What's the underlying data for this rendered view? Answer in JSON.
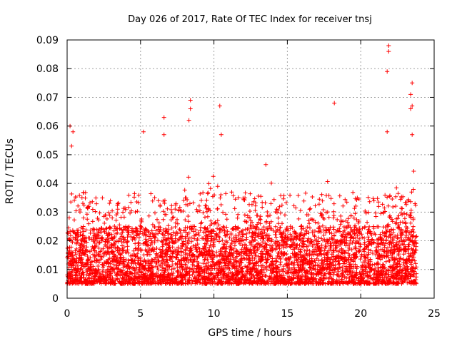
{
  "chart_data": {
    "type": "scatter",
    "title": "Day 026 of 2017, Rate Of TEC Index for receiver tnsj",
    "xlabel": "GPS time / hours",
    "ylabel": "ROTI / TECUs",
    "xlim": [
      0,
      25
    ],
    "ylim": [
      0,
      0.09
    ],
    "xticks": [
      0,
      5,
      10,
      15,
      20,
      25
    ],
    "xtick_labels": [
      "0",
      "5",
      "10",
      "15",
      "20",
      "25"
    ],
    "yticks": [
      0,
      0.01,
      0.02,
      0.03,
      0.04,
      0.05,
      0.06,
      0.07,
      0.08,
      0.09
    ],
    "ytick_labels": [
      "0",
      "0.01",
      "0.02",
      "0.03",
      "0.04",
      "0.05",
      "0.06",
      "0.07",
      "0.08",
      "0.09"
    ],
    "grid": true,
    "marker": "+",
    "series": [
      {
        "name": "ROTI",
        "color": "#ff0000",
        "x_range": [
          0,
          23.8
        ],
        "typical_band": [
          0.005,
          0.025
        ],
        "notable_points": [
          {
            "x": 0.2,
            "y": 0.06
          },
          {
            "x": 0.4,
            "y": 0.058
          },
          {
            "x": 0.3,
            "y": 0.053
          },
          {
            "x": 5.2,
            "y": 0.058
          },
          {
            "x": 6.6,
            "y": 0.063
          },
          {
            "x": 6.6,
            "y": 0.057
          },
          {
            "x": 8.4,
            "y": 0.069
          },
          {
            "x": 8.4,
            "y": 0.066
          },
          {
            "x": 8.3,
            "y": 0.062
          },
          {
            "x": 10.4,
            "y": 0.067
          },
          {
            "x": 10.5,
            "y": 0.057
          },
          {
            "x": 18.2,
            "y": 0.068
          },
          {
            "x": 21.9,
            "y": 0.088
          },
          {
            "x": 21.9,
            "y": 0.086
          },
          {
            "x": 21.8,
            "y": 0.079
          },
          {
            "x": 23.5,
            "y": 0.075
          },
          {
            "x": 23.4,
            "y": 0.071
          },
          {
            "x": 23.5,
            "y": 0.067
          },
          {
            "x": 23.4,
            "y": 0.066
          },
          {
            "x": 21.8,
            "y": 0.058
          },
          {
            "x": 23.5,
            "y": 0.057
          }
        ]
      }
    ]
  }
}
